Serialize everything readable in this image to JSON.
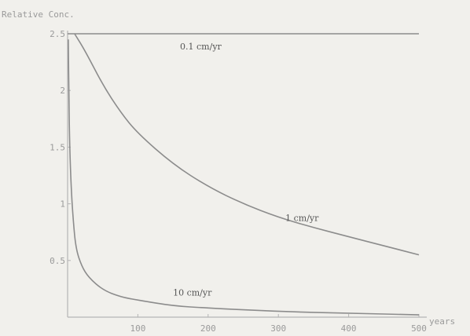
{
  "chart_data": {
    "type": "line",
    "ylabel": "Relative Conc.",
    "xlabel": "years",
    "xlim": [
      0,
      500
    ],
    "ylim": [
      0,
      2.5
    ],
    "x_ticks": [
      100,
      200,
      300,
      400,
      500
    ],
    "y_ticks": [
      0.5,
      1,
      1.5,
      2,
      2.5
    ],
    "y_tick_labels": [
      "0.5",
      "1",
      "1.5",
      "2",
      "2.5"
    ],
    "grid": false,
    "legend": "none",
    "series": [
      {
        "name": "0.1 cm/yr",
        "label_at": [
          160,
          2.36
        ],
        "x": [
          0,
          500
        ],
        "y": [
          2.5,
          2.5
        ]
      },
      {
        "name": "1 cm/yr",
        "label_at": [
          310,
          0.85
        ],
        "x": [
          10,
          25,
          50,
          75,
          100,
          150,
          200,
          250,
          300,
          350,
          400,
          450,
          500
        ],
        "y": [
          2.5,
          2.35,
          2.05,
          1.81,
          1.62,
          1.35,
          1.15,
          1.0,
          0.88,
          0.79,
          0.71,
          0.63,
          0.55
        ]
      },
      {
        "name": "10 cm/yr",
        "label_at": [
          150,
          0.19
        ],
        "x": [
          1,
          2,
          3,
          5,
          8,
          12,
          20,
          30,
          50,
          75,
          100,
          150,
          200,
          300,
          400,
          500
        ],
        "y": [
          2.45,
          1.9,
          1.5,
          1.15,
          0.85,
          0.6,
          0.45,
          0.35,
          0.24,
          0.18,
          0.15,
          0.1,
          0.08,
          0.05,
          0.035,
          0.02
        ]
      }
    ]
  }
}
